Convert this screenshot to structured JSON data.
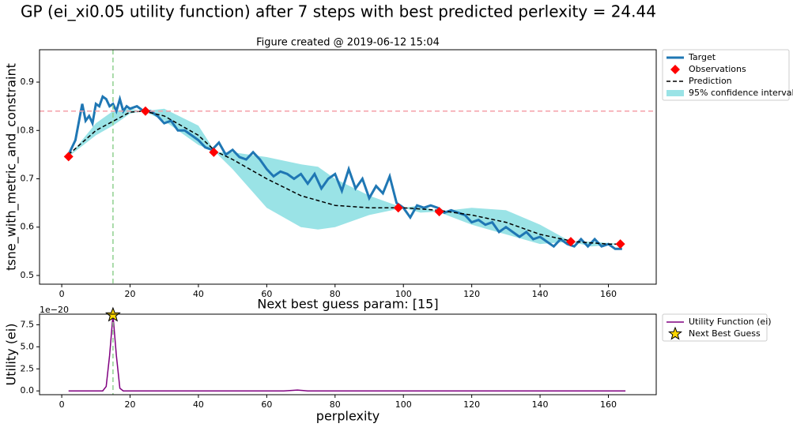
{
  "title": "GP (ei_xi0.05 utility function) after 7 steps with best predicted perlexity = 24.44",
  "chart_data": [
    {
      "type": "line",
      "title": "Figure created @ 2019-06-12 15:04",
      "ylabel": "tsne_with_metric_and_constraint",
      "xlim": [
        -6.5,
        174
      ],
      "ylim": [
        0.482,
        0.967
      ],
      "xticks": [
        0,
        20,
        40,
        60,
        80,
        100,
        120,
        140,
        160
      ],
      "yticks": [
        0.5,
        0.6,
        0.7,
        0.8,
        0.9
      ],
      "legend": "outside upper right",
      "hlines": [
        {
          "y": 0.84,
          "color": "#f4a0a8"
        }
      ],
      "vlines": [
        {
          "x": 15,
          "color": "#8fd18f"
        }
      ],
      "series": [
        {
          "name": "Target",
          "color": "#1f77b4",
          "style": "solid",
          "x": [
            2,
            4,
            6,
            7,
            8,
            9,
            10,
            11,
            12,
            13,
            14,
            15,
            16,
            17,
            18,
            19,
            20,
            22,
            24,
            26,
            28,
            30,
            32,
            34,
            36,
            38,
            40,
            42,
            44,
            46,
            48,
            50,
            52,
            54,
            56,
            58,
            60,
            62,
            64,
            66,
            68,
            70,
            72,
            74,
            76,
            78,
            80,
            82,
            84,
            86,
            88,
            90,
            92,
            94,
            96,
            98,
            100,
            102,
            104,
            106,
            108,
            110,
            112,
            114,
            116,
            118,
            120,
            122,
            124,
            126,
            128,
            130,
            132,
            134,
            136,
            138,
            140,
            142,
            144,
            146,
            148,
            150,
            152,
            154,
            156,
            158,
            160,
            162,
            164
          ],
          "values": [
            0.75,
            0.78,
            0.855,
            0.82,
            0.83,
            0.815,
            0.855,
            0.85,
            0.87,
            0.865,
            0.85,
            0.855,
            0.84,
            0.865,
            0.84,
            0.85,
            0.845,
            0.85,
            0.84,
            0.84,
            0.83,
            0.815,
            0.82,
            0.8,
            0.8,
            0.79,
            0.78,
            0.765,
            0.76,
            0.775,
            0.75,
            0.76,
            0.745,
            0.74,
            0.755,
            0.74,
            0.72,
            0.705,
            0.715,
            0.71,
            0.7,
            0.71,
            0.69,
            0.71,
            0.68,
            0.7,
            0.71,
            0.675,
            0.72,
            0.68,
            0.7,
            0.66,
            0.685,
            0.67,
            0.705,
            0.65,
            0.64,
            0.62,
            0.645,
            0.64,
            0.645,
            0.64,
            0.63,
            0.635,
            0.63,
            0.625,
            0.61,
            0.615,
            0.605,
            0.61,
            0.59,
            0.6,
            0.59,
            0.58,
            0.59,
            0.575,
            0.58,
            0.57,
            0.56,
            0.575,
            0.565,
            0.56,
            0.575,
            0.56,
            0.575,
            0.56,
            0.565,
            0.555,
            0.555
          ]
        },
        {
          "name": "Observations",
          "color": "#ff0000",
          "style": "diamond",
          "x": [
            2,
            24.5,
            44.5,
            98.5,
            110.5,
            149,
            163.5
          ],
          "values": [
            0.746,
            0.84,
            0.755,
            0.64,
            0.632,
            0.57,
            0.565
          ]
        },
        {
          "name": "Prediction",
          "color": "#000000",
          "style": "dashed",
          "x": [
            2,
            10,
            20,
            24,
            30,
            40,
            45,
            50,
            60,
            70,
            80,
            90,
            100,
            110,
            120,
            130,
            140,
            150,
            160,
            164
          ],
          "values": [
            0.75,
            0.8,
            0.838,
            0.84,
            0.83,
            0.79,
            0.757,
            0.74,
            0.7,
            0.665,
            0.645,
            0.64,
            0.64,
            0.635,
            0.625,
            0.61,
            0.585,
            0.57,
            0.565,
            0.565
          ]
        },
        {
          "name": "95% confidence interval",
          "color": "#9ae3e6",
          "style": "band",
          "x": [
            2,
            10,
            15,
            20,
            24,
            30,
            40,
            45,
            50,
            60,
            70,
            75,
            80,
            90,
            100,
            105,
            110,
            120,
            130,
            140,
            149,
            155,
            164
          ],
          "lower": [
            0.746,
            0.79,
            0.81,
            0.835,
            0.84,
            0.82,
            0.77,
            0.755,
            0.72,
            0.64,
            0.6,
            0.595,
            0.6,
            0.625,
            0.64,
            0.63,
            0.632,
            0.605,
            0.585,
            0.565,
            0.57,
            0.56,
            0.565
          ],
          "upper": [
            0.746,
            0.815,
            0.84,
            0.845,
            0.84,
            0.845,
            0.81,
            0.755,
            0.755,
            0.745,
            0.73,
            0.725,
            0.7,
            0.665,
            0.64,
            0.645,
            0.632,
            0.64,
            0.635,
            0.605,
            0.57,
            0.57,
            0.565
          ]
        }
      ]
    },
    {
      "type": "line",
      "title": "Next best guess param: [15]",
      "ylabel": "Utility (ei)",
      "xlabel": "perplexity",
      "y_offset_label": "1e−20",
      "xlim": [
        -6.5,
        174
      ],
      "ylim": [
        -0.43,
        8.7
      ],
      "xticks": [
        0,
        20,
        40,
        60,
        80,
        100,
        120,
        140,
        160
      ],
      "yticks": [
        {
          "value": 0,
          "label": "0.0"
        },
        2.5,
        {
          "value": 5,
          "label": "5.0"
        },
        7.5
      ],
      "legend": "outside upper right",
      "vlines": [
        {
          "x": 15,
          "color": "#8fd18f"
        }
      ],
      "series": [
        {
          "name": "Utility Function (ei)",
          "color": "#800080",
          "style": "solid",
          "x": [
            2,
            12,
            13,
            14,
            15,
            16,
            17,
            18,
            65,
            69,
            72,
            165
          ],
          "values": [
            0,
            0,
            0.5,
            4,
            8.6,
            4,
            0.3,
            0,
            0,
            0.1,
            0,
            0
          ]
        },
        {
          "name": "Next Best Guess",
          "color": "#ffd700",
          "style": "star",
          "x": [
            15
          ],
          "values": [
            8.6
          ]
        }
      ]
    }
  ]
}
